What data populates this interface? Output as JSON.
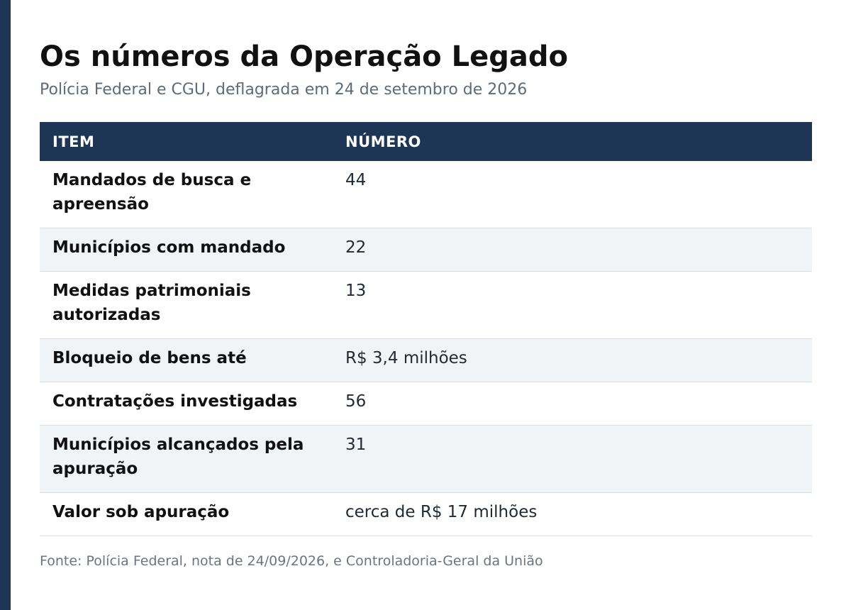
{
  "header": {
    "title": "Os números da Operação Legado",
    "subtitle": "Polícia Federal e CGU, deflagrada em 24 de setembro de 2026"
  },
  "table": {
    "columns": [
      "ITEM",
      "NÚMERO"
    ],
    "rows": [
      {
        "item": "Mandados de busca e apreensão",
        "value": "44"
      },
      {
        "item": "Municípios com mandado",
        "value": "22"
      },
      {
        "item": "Medidas patrimoniais autorizadas",
        "value": "13"
      },
      {
        "item": "Bloqueio de bens até",
        "value": "R$ 3,4 milhões"
      },
      {
        "item": "Contratações investigadas",
        "value": "56"
      },
      {
        "item": "Municípios alcançados pela apuração",
        "value": "31"
      },
      {
        "item": "Valor sob apuração",
        "value": "cerca de R$ 17 milhões"
      }
    ]
  },
  "footer": {
    "source": "Fonte: Polícia Federal, nota de 24/09/2026, e Controladoria-Geral da União"
  },
  "colors": {
    "accent": "#1e3556",
    "stripe": "#f1f4f7"
  }
}
